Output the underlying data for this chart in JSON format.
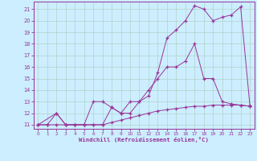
{
  "bg_color": "#cceeff",
  "line_color": "#993399",
  "grid_color": "#aaccbb",
  "xlabel": "Windchill (Refroidissement éolien,°C)",
  "xlim_min": -0.5,
  "xlim_max": 23.5,
  "ylim_min": 10.65,
  "ylim_max": 21.65,
  "xticks": [
    0,
    1,
    2,
    3,
    4,
    5,
    6,
    7,
    8,
    9,
    10,
    11,
    12,
    13,
    14,
    15,
    16,
    17,
    18,
    19,
    20,
    21,
    22,
    23
  ],
  "yticks": [
    11,
    12,
    13,
    14,
    15,
    16,
    17,
    18,
    19,
    20,
    21
  ],
  "line1_x": [
    0,
    1,
    2,
    3,
    4,
    5,
    6,
    7,
    8,
    9,
    10,
    11,
    12,
    13,
    14,
    15,
    16,
    17,
    18,
    19,
    20,
    21,
    22,
    23
  ],
  "line1_y": [
    11,
    11,
    11,
    11,
    11,
    11,
    11,
    11,
    11.2,
    11.4,
    11.6,
    11.8,
    12.0,
    12.2,
    12.3,
    12.4,
    12.5,
    12.6,
    12.6,
    12.7,
    12.7,
    12.7,
    12.7,
    12.6
  ],
  "line2_x": [
    0,
    1,
    2,
    3,
    4,
    5,
    6,
    7,
    8,
    9,
    10,
    11,
    12,
    13,
    14,
    15,
    16,
    17,
    18,
    19,
    20,
    21,
    22,
    23
  ],
  "line2_y": [
    11,
    11,
    12,
    11,
    11,
    11,
    13,
    13,
    12.5,
    12,
    13,
    13,
    14,
    15,
    16,
    16,
    16.5,
    18,
    15,
    15,
    13,
    12.8,
    12.7,
    12.6
  ],
  "line3_x": [
    0,
    2,
    3,
    4,
    5,
    6,
    7,
    8,
    9,
    10,
    11,
    12,
    13,
    14,
    15,
    16,
    17,
    18,
    19,
    20,
    21,
    22,
    23
  ],
  "line3_y": [
    11,
    12,
    11,
    11,
    11,
    11,
    11,
    12.5,
    12,
    12,
    13,
    13.5,
    15.5,
    18.5,
    19.2,
    20,
    21.3,
    21.0,
    20,
    20.3,
    20.5,
    21.2,
    12.7
  ]
}
